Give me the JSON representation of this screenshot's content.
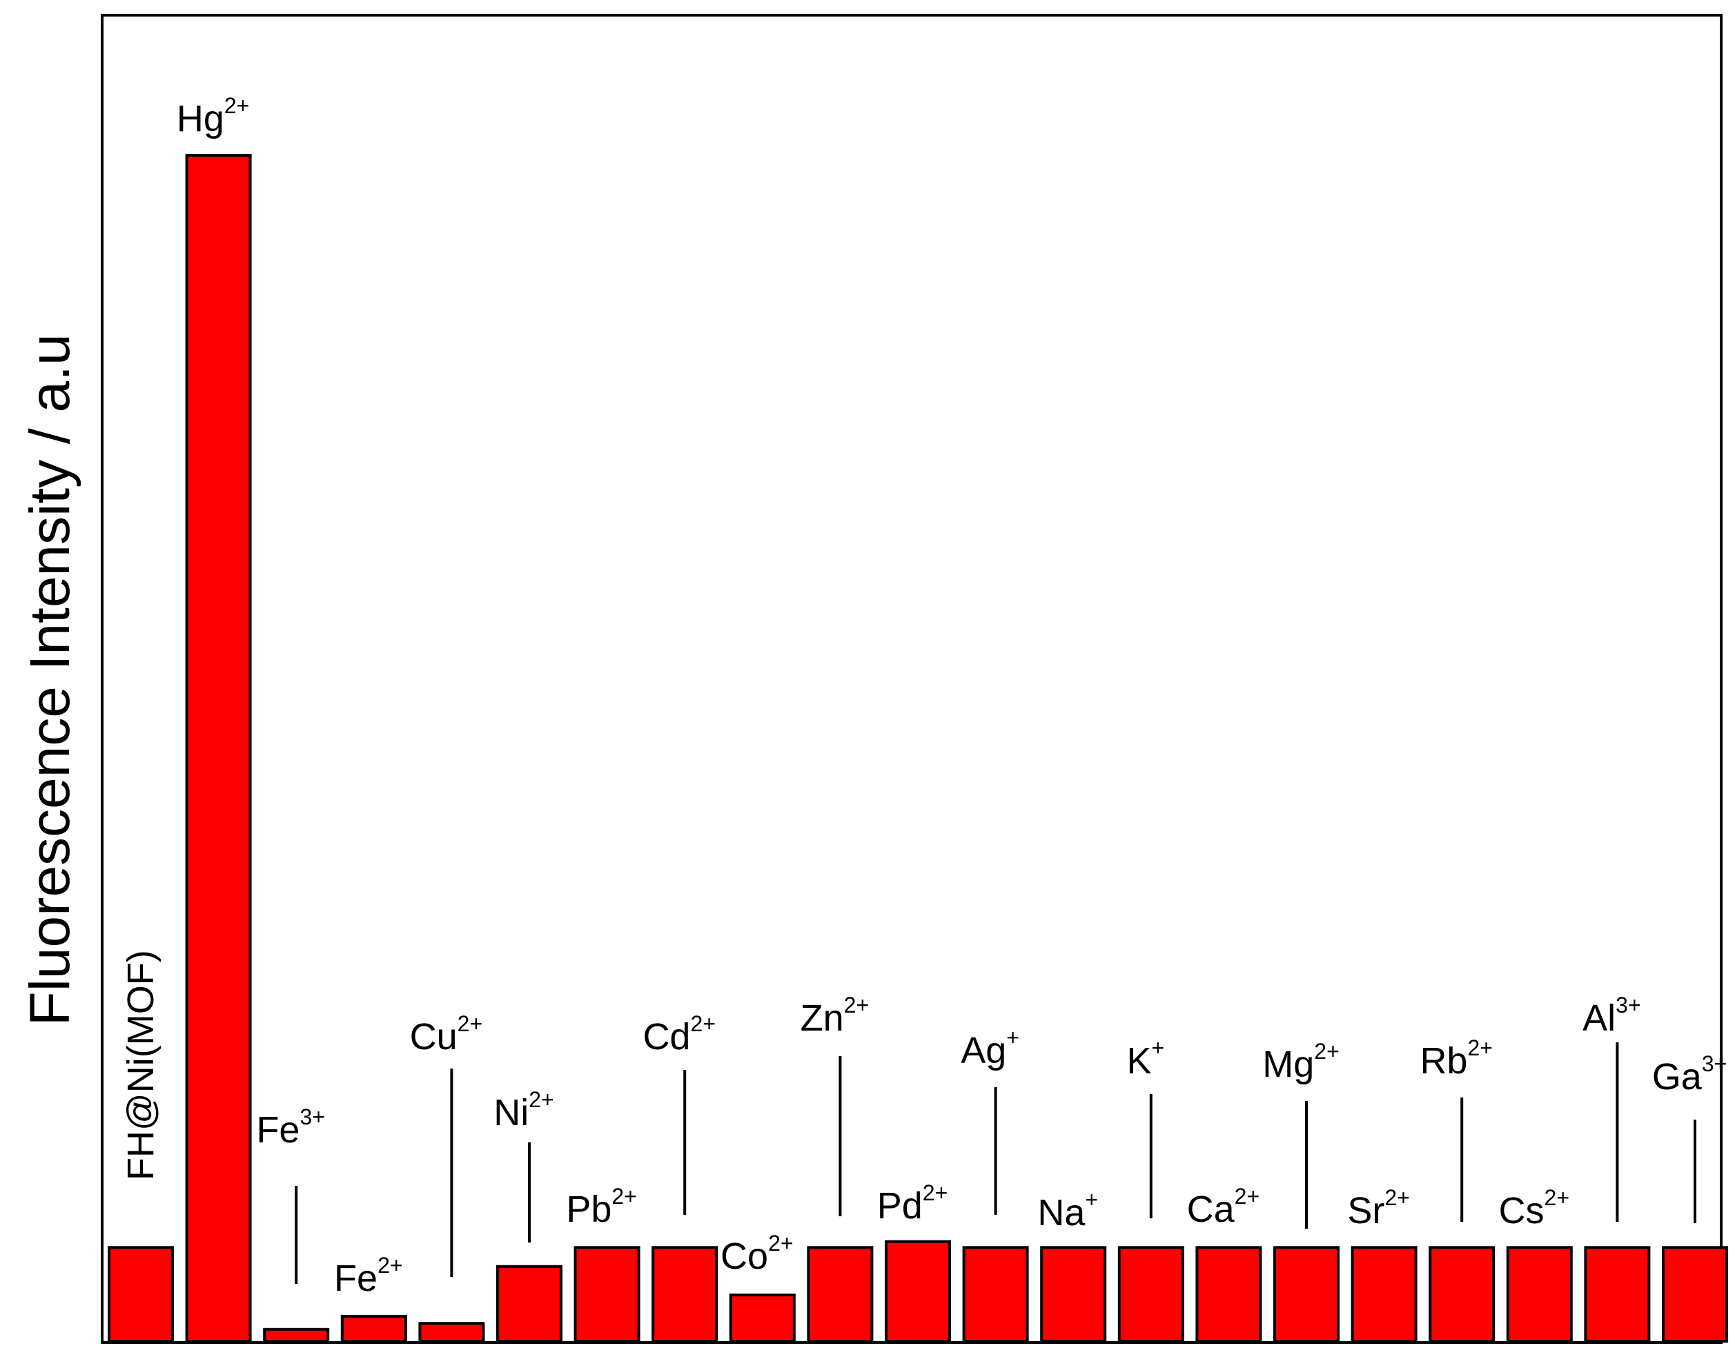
{
  "chart_data": {
    "type": "bar",
    "title": "",
    "xlabel": "",
    "ylabel": "Fluorescence Intensity / a.u",
    "ylim": [
      0,
      100
    ],
    "grid": false,
    "legend": "none",
    "bar_color": "#ff0000",
    "categories": [
      {
        "base": "FH@Ni(MOF)",
        "sup": ""
      },
      {
        "base": "Hg",
        "sup": "2+"
      },
      {
        "base": "Fe",
        "sup": "3+"
      },
      {
        "base": "Fe",
        "sup": "2+"
      },
      {
        "base": "Cu",
        "sup": "2+"
      },
      {
        "base": "Ni",
        "sup": "2+"
      },
      {
        "base": "Pb",
        "sup": "2+"
      },
      {
        "base": "Cd",
        "sup": "2+"
      },
      {
        "base": "Co",
        "sup": "2+"
      },
      {
        "base": "Zn",
        "sup": "2+"
      },
      {
        "base": "Pd",
        "sup": "2+"
      },
      {
        "base": "Ag",
        "sup": "+"
      },
      {
        "base": "Na",
        "sup": "+"
      },
      {
        "base": "K",
        "sup": "+"
      },
      {
        "base": "Ca",
        "sup": "2+"
      },
      {
        "base": "Mg",
        "sup": "2+"
      },
      {
        "base": "Sr",
        "sup": "2+"
      },
      {
        "base": "Rb",
        "sup": "2+"
      },
      {
        "base": "Cs",
        "sup": "2+"
      },
      {
        "base": "Al",
        "sup": "3+"
      },
      {
        "base": "Ga",
        "sup": "3+"
      }
    ],
    "values": [
      7.9,
      100,
      1.0,
      2.1,
      1.5,
      6.3,
      7.9,
      7.9,
      3.9,
      7.9,
      8.4,
      7.9,
      7.9,
      7.9,
      7.9,
      7.9,
      7.9,
      7.9,
      7.9,
      7.9,
      7.9
    ]
  }
}
